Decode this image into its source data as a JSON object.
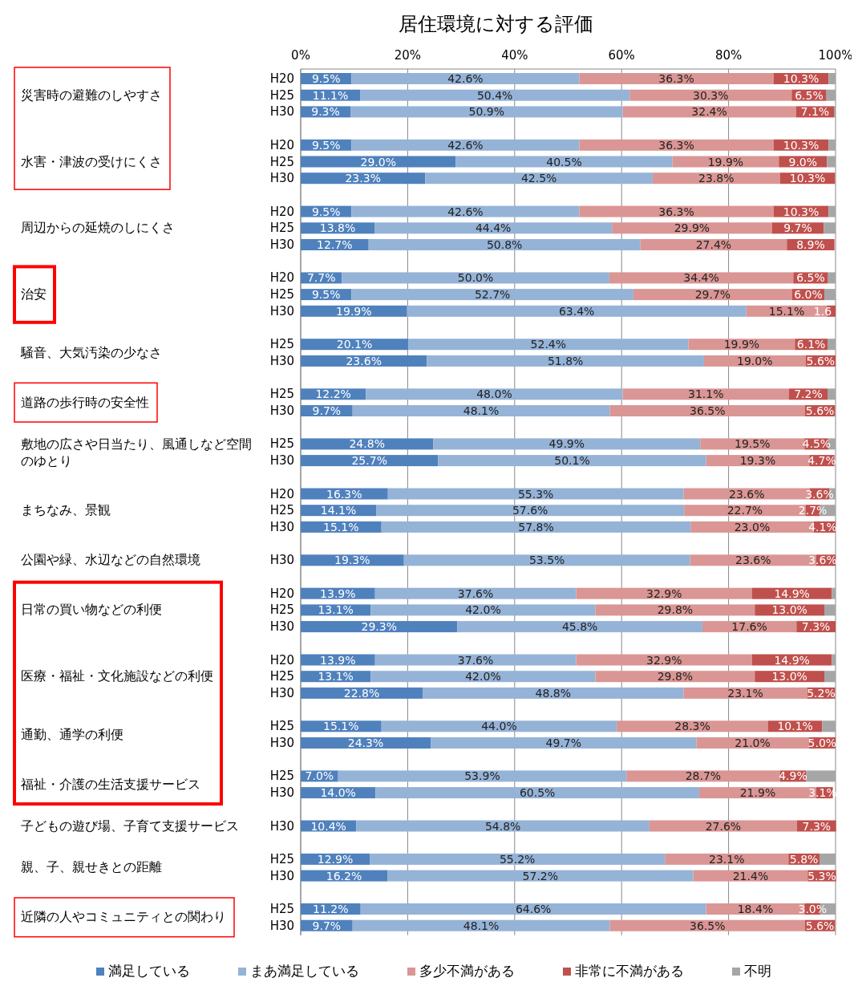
{
  "chart_data": {
    "type": "bar",
    "orientation": "horizontal",
    "stacked": true,
    "title": "居住環境に対する評価",
    "categories": [
      "H20",
      "H25",
      "H30",
      null,
      "H20",
      "H25",
      "H30",
      null,
      "H20",
      "H25",
      "H30",
      null,
      "H20",
      "H25",
      "H30",
      null,
      "H25",
      "H30",
      null,
      "H25",
      "H30",
      null,
      "H25",
      "H30",
      null,
      "H20",
      "H25",
      "H30",
      null,
      "H30",
      null,
      "H20",
      "H25",
      "H30",
      null,
      "H20",
      "H25",
      "H30",
      null,
      "H25",
      "H30",
      null,
      "H25",
      "H30",
      null,
      "H30",
      null,
      "H25",
      "H30",
      null,
      "H25",
      "H30"
    ],
    "series": [
      {
        "name": "満足している",
        "color": "#4f81bd",
        "values": [
          9.5,
          11.1,
          9.3,
          null,
          9.5,
          29.0,
          23.3,
          null,
          9.5,
          13.8,
          12.7,
          null,
          7.7,
          9.5,
          19.9,
          null,
          20.1,
          23.6,
          null,
          12.2,
          9.7,
          null,
          24.8,
          25.7,
          null,
          16.3,
          14.1,
          15.1,
          null,
          19.3,
          null,
          13.9,
          13.1,
          29.3,
          null,
          13.9,
          13.1,
          22.8,
          null,
          15.1,
          24.3,
          null,
          7.0,
          14.0,
          null,
          10.4,
          null,
          12.9,
          16.2,
          null,
          11.2,
          9.7
        ],
        "value_labels": [
          "9.5%",
          "11.1%",
          "9.3%",
          null,
          "9.5%",
          "29.0%",
          "23.3%",
          null,
          "9.5%",
          "13.8%",
          "12.7%",
          null,
          "7.7%",
          "9.5%",
          "19.9%",
          null,
          "20.1%",
          "23.6%",
          null,
          "12.2%",
          "9.7%",
          null,
          "24.8%",
          "25.7%",
          null,
          "16.3%",
          "14.1%",
          "15.1%",
          null,
          "19.3%",
          null,
          "13.9%",
          "13.1%",
          "29.3%",
          null,
          "13.9%",
          "13.1%",
          "22.8%",
          null,
          "15.1%",
          "24.3%",
          null,
          "7.0%",
          "14.0%",
          null,
          "10.4%",
          null,
          "12.9%",
          "16.2%",
          null,
          "11.2%",
          "9.7%"
        ]
      },
      {
        "name": "まあ満足している",
        "color": "#95b3d7",
        "values": [
          42.6,
          50.4,
          50.9,
          null,
          42.6,
          40.5,
          42.5,
          null,
          42.6,
          44.4,
          50.8,
          null,
          50.0,
          52.7,
          63.4,
          null,
          52.4,
          51.8,
          null,
          48.0,
          48.1,
          null,
          49.9,
          50.1,
          null,
          55.3,
          57.6,
          57.8,
          null,
          53.5,
          null,
          37.6,
          42.0,
          45.8,
          null,
          37.6,
          42.0,
          48.8,
          null,
          44.0,
          49.7,
          null,
          53.9,
          60.5,
          null,
          54.8,
          null,
          55.2,
          57.2,
          null,
          64.6,
          48.1
        ],
        "value_labels": [
          "42.6%",
          "50.4%",
          "50.9%",
          null,
          "42.6%",
          "40.5%",
          "42.5%",
          null,
          "42.6%",
          "44.4%",
          "50.8%",
          null,
          "50.0%",
          "52.7%",
          "63.4%",
          null,
          "52.4%",
          "51.8%",
          null,
          "48.0%",
          "48.1%",
          null,
          "49.9%",
          "50.1%",
          null,
          "55.3%",
          "57.6%",
          "57.8%",
          null,
          "53.5%",
          null,
          "37.6%",
          "42.0%",
          "45.8%",
          null,
          "37.6%",
          "42.0%",
          "48.8%",
          null,
          "44.0%",
          "49.7%",
          null,
          "53.9%",
          "60.5%",
          null,
          "54.8%",
          null,
          "55.2%",
          "57.2%",
          null,
          "64.6%",
          "48.1%"
        ]
      },
      {
        "name": "多少不満がある",
        "color": "#da9694",
        "values": [
          36.3,
          30.3,
          32.4,
          null,
          36.3,
          19.9,
          23.8,
          null,
          36.3,
          29.9,
          27.4,
          null,
          34.4,
          29.7,
          15.1,
          null,
          19.9,
          19.0,
          null,
          31.1,
          36.5,
          null,
          19.5,
          19.3,
          null,
          23.6,
          22.7,
          23.0,
          null,
          23.6,
          null,
          32.9,
          29.8,
          17.6,
          null,
          32.9,
          29.8,
          23.1,
          null,
          28.3,
          21.0,
          null,
          28.7,
          21.9,
          null,
          27.6,
          null,
          23.1,
          21.4,
          null,
          18.4,
          36.5
        ],
        "value_labels": [
          "36.3%",
          "30.3%",
          "32.4%",
          null,
          "36.3%",
          "19.9%",
          "23.8%",
          null,
          "36.3%",
          "29.9%",
          "27.4%",
          null,
          "34.4%",
          "29.7%",
          "15.1%",
          null,
          "19.9%",
          "19.0%",
          null,
          "31.1%",
          "36.5%",
          null,
          "19.5%",
          "19.3%",
          null,
          "23.6%",
          "22.7%",
          "23.0%",
          null,
          "23.6%",
          null,
          "32.9%",
          "29.8%",
          "17.6%",
          null,
          "32.9%",
          "29.8%",
          "23.1%",
          null,
          "28.3%",
          "21.0%",
          null,
          "28.7%",
          "21.9%",
          null,
          "27.6%",
          null,
          "23.1%",
          "21.4%",
          null,
          "18.4%",
          "36.5%"
        ]
      },
      {
        "name": "非常に不満がある",
        "color": "#c0504d",
        "values": [
          10.3,
          6.5,
          7.1,
          null,
          10.3,
          9.0,
          10.3,
          null,
          10.3,
          9.7,
          8.9,
          null,
          6.5,
          6.0,
          1.6,
          null,
          6.1,
          5.6,
          null,
          7.2,
          5.6,
          null,
          4.5,
          4.7,
          null,
          3.6,
          2.7,
          4.1,
          null,
          3.6,
          null,
          14.9,
          13.0,
          7.3,
          null,
          14.9,
          13.0,
          5.2,
          null,
          10.1,
          5.0,
          null,
          4.9,
          3.1,
          null,
          7.3,
          null,
          5.8,
          5.3,
          null,
          3.0,
          5.6
        ],
        "value_labels": [
          "10.3%",
          "6.5%",
          "7.1%",
          null,
          "10.3%",
          "9.0%",
          "10.3%",
          null,
          "10.3%",
          "9.7%",
          "8.9%",
          null,
          "6.5%",
          "6.0%",
          "1.6",
          null,
          "6.1%",
          "5.6%",
          null,
          "7.2%",
          "5.6%",
          null,
          "4.5%",
          "4.7%",
          null,
          "3.6%",
          "2.7%",
          "4.1%",
          null,
          "3.6%",
          null,
          "14.9%",
          "13.0%",
          "7.3%",
          null,
          "14.9%",
          "13.0%",
          "5.2%",
          null,
          "10.1%",
          "5.0%",
          null,
          "4.9%",
          "3.1%",
          null,
          "7.3%",
          null,
          "5.8%",
          "5.3%",
          null,
          "3.0%",
          "5.6%"
        ]
      },
      {
        "name": "不明",
        "color": "#a6a6a6",
        "values": [
          1.3,
          1.7,
          0.3,
          null,
          1.3,
          1.6,
          0,
          null,
          1.3,
          2.2,
          0,
          null,
          1.4,
          2.1,
          0,
          null,
          1.5,
          0,
          null,
          1.5,
          0,
          null,
          1.3,
          0,
          null,
          1.2,
          2.9,
          0,
          null,
          0,
          null,
          0.7,
          2.1,
          0,
          null,
          0.7,
          2.1,
          0,
          null,
          2.5,
          0,
          null,
          5.5,
          0,
          null,
          0,
          null,
          3.0,
          0,
          null,
          2.8,
          0
        ]
      }
    ],
    "xlim": [
      0,
      100
    ],
    "xticks": [
      {
        "value": 0,
        "label": "0%"
      },
      {
        "value": 20,
        "label": "20%"
      },
      {
        "value": 40,
        "label": "40%"
      },
      {
        "value": 60,
        "label": "60%"
      },
      {
        "value": 80,
        "label": "80%"
      },
      {
        "value": 100,
        "label": "100%"
      }
    ],
    "grid": "x",
    "legend": "bottom",
    "annotations": [
      "災害時の避難のしやすさ",
      "水害・津波の受けにくさ",
      "周辺からの延焼のしにくさ",
      "治安",
      "騒音、大気汚染の少なさ",
      "道路の歩行時の安全性",
      "敷地の広さや日当たり、風通しなど空間のゆとり",
      "まちなみ、景観",
      "公園や緑、水辺などの自然環境",
      "日常の買い物などの利便",
      "医療・福祉・文化施設などの利便",
      "通勤、通学の利便",
      "福祉・介護の生活支援サービス",
      "子どもの遊び場、子育て支援サービス",
      "親、子、親せきとの距離",
      "近隣の人やコミュニティとの関わり"
    ]
  }
}
